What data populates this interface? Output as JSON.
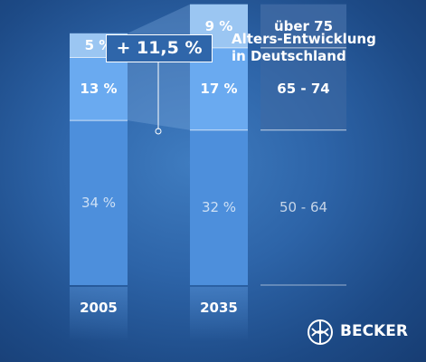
{
  "chart_data": {
    "type": "bar",
    "title": "Alters-Entwicklung in Deutschland",
    "title_lines": [
      "Alters-Entwicklung",
      "in Deutschland"
    ],
    "categories": [
      "2005",
      "2035"
    ],
    "series": [
      {
        "name": "50 - 64",
        "values": [
          34,
          32
        ],
        "labels": [
          "34 %",
          "32 %"
        ]
      },
      {
        "name": "65 - 74",
        "values": [
          13,
          17
        ],
        "labels": [
          "13 %",
          "17 %"
        ]
      },
      {
        "name": "über 75",
        "values": [
          5,
          9
        ],
        "labels": [
          "5 %",
          "9 %"
        ]
      }
    ],
    "annotation": "+ 11,5 %",
    "legend_position": "right",
    "colors": {
      "seg_50_64": "#4d8fdc",
      "seg_65_74": "#6aaaf0",
      "seg_ueber_75": "#9bc6f2",
      "legend_box": "#3f6aa3"
    }
  },
  "brand": {
    "name": "BECKER",
    "icon": "becker-logo-icon"
  }
}
